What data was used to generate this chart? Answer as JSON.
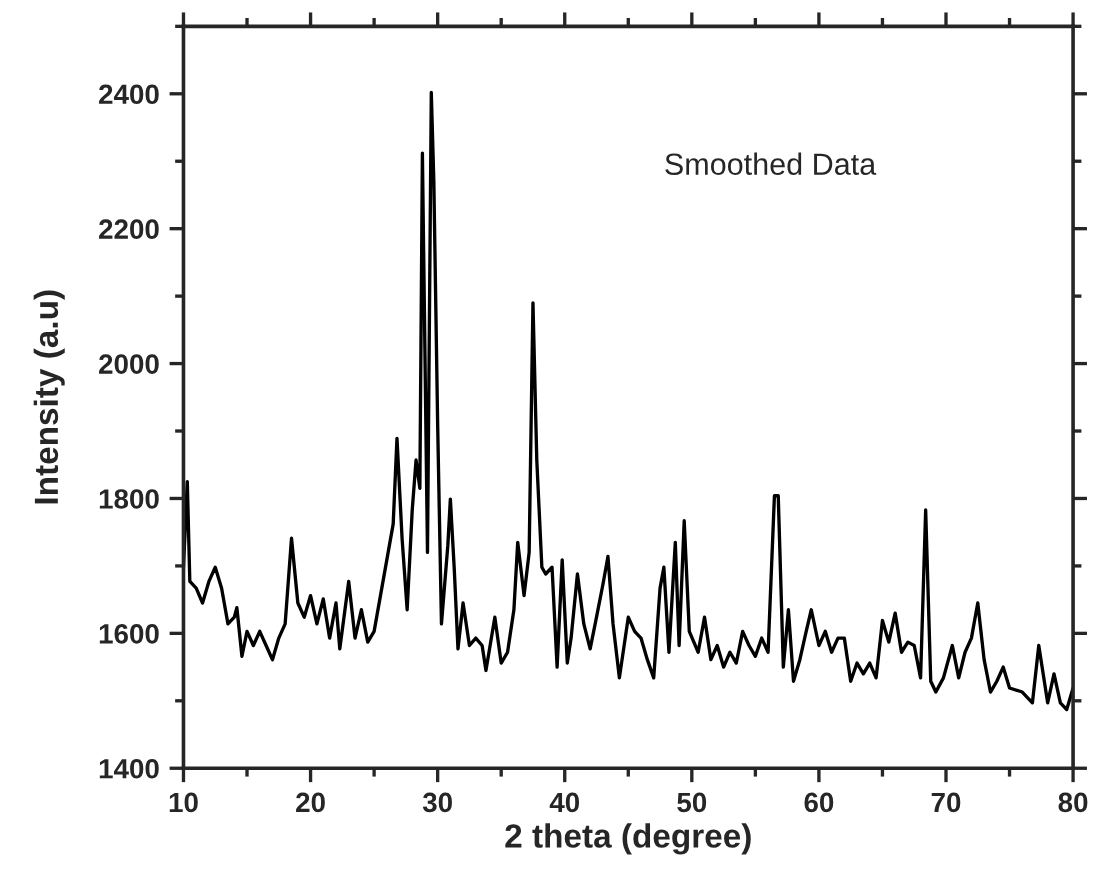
{
  "chart_data": {
    "type": "line",
    "xlabel": "2 theta (degree)",
    "ylabel": "Intensity (a.u)",
    "annotations": [
      "Smoothed Data"
    ],
    "xlim": [
      10,
      80
    ],
    "xticks": [
      10,
      20,
      30,
      40,
      50,
      60,
      70,
      80
    ],
    "ylim": [
      1400,
      2500
    ],
    "yticks": [
      1400,
      1600,
      1800,
      2000,
      2200,
      2400
    ],
    "grid": false,
    "legend": false,
    "marker": "none",
    "line_style": "solid",
    "series": [
      {
        "color": "#000000",
        "x": [
          10,
          10.3,
          10.5,
          11,
          11.5,
          12,
          12.5,
          13,
          13.5,
          14,
          14.2,
          14.6,
          15,
          15.5,
          16,
          16.5,
          17,
          17.5,
          18,
          18.5,
          19,
          19.5,
          20,
          20.5,
          21,
          21.5,
          22,
          22.3,
          23,
          23.5,
          24,
          24.5,
          25,
          25.5,
          26,
          26.5,
          26.8,
          27.2,
          27.6,
          28,
          28.3,
          28.6,
          28.8,
          29.2,
          29.5,
          29.7,
          30,
          30.3,
          30.8,
          31,
          31.3,
          31.6,
          32,
          32.5,
          33,
          33.5,
          33.8,
          34.5,
          35,
          35.5,
          36,
          36.3,
          36.8,
          37.2,
          37.5,
          37.8,
          38.2,
          38.5,
          39,
          39.4,
          39.8,
          40.2,
          40.5,
          41,
          41.5,
          42,
          42.5,
          43,
          43.4,
          43.8,
          44.3,
          45,
          45.5,
          46,
          46.5,
          47,
          47.5,
          47.8,
          48.2,
          48.7,
          49,
          49.4,
          49.8,
          50.5,
          51,
          51.5,
          52,
          52.5,
          53,
          53.5,
          54,
          54.5,
          55,
          55.5,
          56,
          56.5,
          56.8,
          57.2,
          57.6,
          58,
          58.5,
          59,
          59.4,
          60,
          60.5,
          61,
          61.5,
          62,
          62.5,
          63,
          63.5,
          64,
          64.5,
          65,
          65.5,
          66,
          66.5,
          67,
          67.5,
          68,
          68.4,
          68.8,
          69.2,
          69.8,
          70.5,
          71,
          71.5,
          72,
          72.5,
          73,
          73.5,
          74,
          74.5,
          75,
          76,
          76.8,
          77.3,
          78,
          78.5,
          79,
          79.5,
          80
        ],
        "values": [
          1698,
          1825,
          1677,
          1667,
          1645,
          1677,
          1698,
          1667,
          1614,
          1624,
          1638,
          1566,
          1603,
          1582,
          1603,
          1582,
          1561,
          1593,
          1614,
          1741,
          1645,
          1624,
          1656,
          1614,
          1651,
          1593,
          1645,
          1577,
          1677,
          1593,
          1635,
          1587,
          1603,
          1656,
          1709,
          1762,
          1889,
          1741,
          1635,
          1783,
          1857,
          1815,
          2312,
          1720,
          2402,
          2270,
          1910,
          1614,
          1730,
          1799,
          1698,
          1577,
          1645,
          1582,
          1593,
          1582,
          1545,
          1624,
          1556,
          1572,
          1635,
          1735,
          1656,
          1720,
          2090,
          1857,
          1698,
          1688,
          1698,
          1550,
          1709,
          1556,
          1593,
          1688,
          1614,
          1577,
          1624,
          1672,
          1714,
          1614,
          1534,
          1624,
          1603,
          1593,
          1561,
          1534,
          1667,
          1698,
          1572,
          1735,
          1582,
          1767,
          1603,
          1572,
          1624,
          1561,
          1582,
          1550,
          1572,
          1556,
          1603,
          1582,
          1566,
          1593,
          1572,
          1804,
          1804,
          1550,
          1635,
          1529,
          1561,
          1603,
          1635,
          1582,
          1603,
          1572,
          1593,
          1593,
          1529,
          1556,
          1540,
          1556,
          1534,
          1619,
          1587,
          1630,
          1572,
          1587,
          1582,
          1534,
          1783,
          1529,
          1513,
          1534,
          1582,
          1534,
          1572,
          1593,
          1645,
          1561,
          1513,
          1529,
          1550,
          1519,
          1513,
          1497,
          1582,
          1497,
          1540,
          1497,
          1487,
          1519
        ]
      }
    ]
  }
}
